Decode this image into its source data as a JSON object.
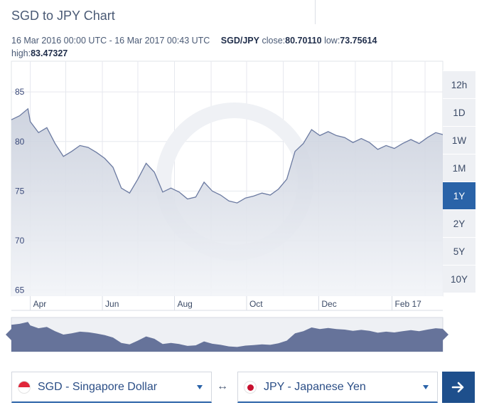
{
  "header": {
    "title": "SGD to JPY Chart"
  },
  "info": {
    "range": "16 Mar 2016 00:00 UTC - 16 Mar 2017 00:43 UTC",
    "pair": "SGD/JPY",
    "close_label": "close:",
    "close_value": "80.70110",
    "low_label": "low:",
    "low_value": "73.75614",
    "high_label": "high:",
    "high_value": "83.47327"
  },
  "timeframes": [
    {
      "label": "12h",
      "active": false
    },
    {
      "label": "1D",
      "active": false
    },
    {
      "label": "1W",
      "active": false
    },
    {
      "label": "1M",
      "active": false
    },
    {
      "label": "1Y",
      "active": true
    },
    {
      "label": "2Y",
      "active": false
    },
    {
      "label": "5Y",
      "active": false
    },
    {
      "label": "10Y",
      "active": false
    }
  ],
  "converter": {
    "from_label": "SGD - Singapore Dollar",
    "to_label": "JPY - Japanese Yen",
    "swap_symbol": "↔"
  },
  "colors": {
    "accent": "#2a63a8",
    "line": "#6b7aa1",
    "area_top": "#c9cfdc",
    "navigator": "#66739a"
  },
  "chart_data": {
    "type": "area",
    "title": "SGD to JPY Chart",
    "xlabel": "",
    "ylabel": "",
    "x_ticks": [
      "Apr",
      "Jun",
      "Aug",
      "Oct",
      "Dec",
      "Feb 17"
    ],
    "y_ticks": [
      65,
      70,
      75,
      80,
      85
    ],
    "ylim": [
      64.4,
      88.1
    ],
    "xlim": [
      "2016-03-16",
      "2017-03-16"
    ],
    "grid": true,
    "legend": "none",
    "series": [
      {
        "x": [
          "2016-03-16",
          "2016-03-23",
          "2016-03-30",
          "2016-04-01",
          "2016-04-08",
          "2016-04-15",
          "2016-04-22",
          "2016-04-29",
          "2016-05-06",
          "2016-05-13",
          "2016-05-20",
          "2016-05-27",
          "2016-06-03",
          "2016-06-10",
          "2016-06-17",
          "2016-06-24",
          "2016-07-01",
          "2016-07-08",
          "2016-07-15",
          "2016-07-22",
          "2016-07-29",
          "2016-08-05",
          "2016-08-12",
          "2016-08-19",
          "2016-08-26",
          "2016-09-02",
          "2016-09-09",
          "2016-09-16",
          "2016-09-23",
          "2016-09-30",
          "2016-10-07",
          "2016-10-14",
          "2016-10-21",
          "2016-10-28",
          "2016-11-04",
          "2016-11-11",
          "2016-11-18",
          "2016-11-25",
          "2016-12-02",
          "2016-12-09",
          "2016-12-16",
          "2016-12-23",
          "2016-12-30",
          "2017-01-06",
          "2017-01-13",
          "2017-01-20",
          "2017-01-27",
          "2017-02-03",
          "2017-02-10",
          "2017-02-17",
          "2017-02-24",
          "2017-03-03",
          "2017-03-10",
          "2017-03-16"
        ],
        "values": [
          82.2,
          82.6,
          83.3,
          82.0,
          80.9,
          81.4,
          79.8,
          78.5,
          79.0,
          79.6,
          79.4,
          78.9,
          78.3,
          77.4,
          75.3,
          74.8,
          76.2,
          77.8,
          76.9,
          74.9,
          75.3,
          74.9,
          74.2,
          74.4,
          75.9,
          75.0,
          74.6,
          74.0,
          73.8,
          74.3,
          74.5,
          74.8,
          74.6,
          75.2,
          76.2,
          79.0,
          79.8,
          81.2,
          80.6,
          81.0,
          80.6,
          80.4,
          79.9,
          80.3,
          79.9,
          79.2,
          79.6,
          79.3,
          79.8,
          80.2,
          79.8,
          80.4,
          80.9,
          80.7
        ]
      }
    ]
  }
}
